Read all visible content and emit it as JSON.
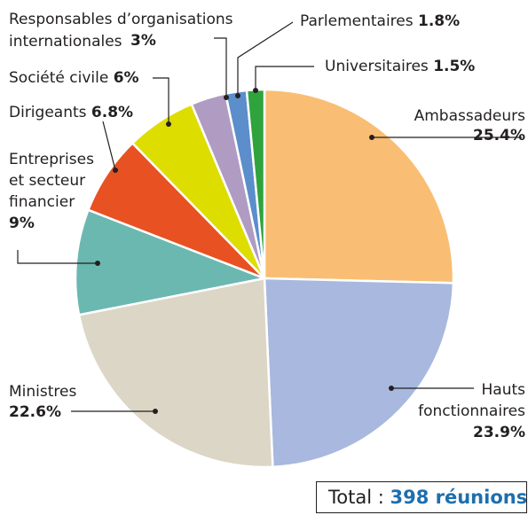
{
  "chart_data": {
    "type": "pie",
    "slices": [
      {
        "label": "Ambassadeurs",
        "value": 25.4,
        "value_text": "25.4%",
        "color": "#f9be73"
      },
      {
        "label": "Hauts fonctionnaires",
        "value": 23.9,
        "value_text": "23.9%",
        "color": "#a8b8de"
      },
      {
        "label": "Ministres",
        "value": 22.6,
        "value_text": "22.6%",
        "color": "#dcd6c6"
      },
      {
        "label": "Entreprises et secteur financier",
        "value": 9,
        "value_text": "9%",
        "color": "#6bb8b1"
      },
      {
        "label": "Dirigeants",
        "value": 6.8,
        "value_text": "6.8%",
        "color": "#e85122"
      },
      {
        "label": "Société civile",
        "value": 6,
        "value_text": "6%",
        "color": "#dddd00"
      },
      {
        "label": "Responsables d’organisations internationales",
        "value": 3,
        "value_text": "3%",
        "color": "#b09cc2"
      },
      {
        "label": "Parlementaires",
        "value": 1.8,
        "value_text": "1.8%",
        "color": "#5b8ecb"
      },
      {
        "label": "Universitaires",
        "value": 1.5,
        "value_text": "1.5%",
        "color": "#2fa33c"
      }
    ],
    "total_label": "Total :",
    "total_value": "398 réunions"
  }
}
